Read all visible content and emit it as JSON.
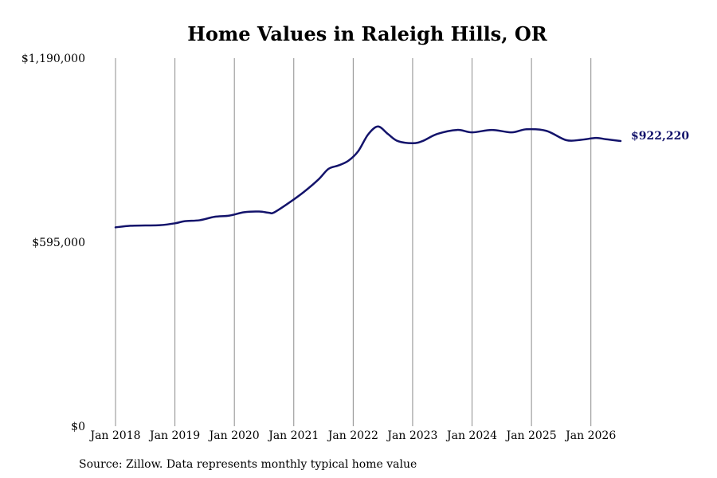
{
  "chart_data": {
    "type": "line",
    "title": "Home Values in Raleigh Hills, OR",
    "xlabel": "",
    "ylabel": "",
    "ylim": [
      0,
      1190000
    ],
    "y_ticks": [
      {
        "value": 0,
        "label": "$0"
      },
      {
        "value": 595000,
        "label": "$595,000"
      },
      {
        "value": 1190000,
        "label": "$1,190,000"
      }
    ],
    "x_range": [
      "2018-01",
      "2026-07"
    ],
    "x_ticks": [
      {
        "date": "2018-01",
        "label": "Jan 2018"
      },
      {
        "date": "2019-01",
        "label": "Jan 2019"
      },
      {
        "date": "2020-01",
        "label": "Jan 2020"
      },
      {
        "date": "2021-01",
        "label": "Jan 2021"
      },
      {
        "date": "2022-01",
        "label": "Jan 2022"
      },
      {
        "date": "2023-01",
        "label": "Jan 2023"
      },
      {
        "date": "2024-01",
        "label": "Jan 2024"
      },
      {
        "date": "2025-01",
        "label": "Jan 2025"
      },
      {
        "date": "2026-01",
        "label": "Jan 2026"
      }
    ],
    "grid": {
      "vertical": true,
      "horizontal": false
    },
    "series": [
      {
        "name": "",
        "color": "#13136b",
        "points": [
          {
            "x": "2018-01",
            "y": 643000
          },
          {
            "x": "2018-04",
            "y": 648000
          },
          {
            "x": "2018-07",
            "y": 649000
          },
          {
            "x": "2018-10",
            "y": 650000
          },
          {
            "x": "2019-01",
            "y": 656000
          },
          {
            "x": "2019-03",
            "y": 663000
          },
          {
            "x": "2019-06",
            "y": 666000
          },
          {
            "x": "2019-09",
            "y": 677000
          },
          {
            "x": "2019-12",
            "y": 681000
          },
          {
            "x": "2020-03",
            "y": 692000
          },
          {
            "x": "2020-06",
            "y": 694000
          },
          {
            "x": "2020-08",
            "y": 690000
          },
          {
            "x": "2020-09",
            "y": 691000
          },
          {
            "x": "2020-12",
            "y": 722000
          },
          {
            "x": "2021-03",
            "y": 757000
          },
          {
            "x": "2021-06",
            "y": 798000
          },
          {
            "x": "2021-08",
            "y": 832000
          },
          {
            "x": "2021-10",
            "y": 843000
          },
          {
            "x": "2021-12",
            "y": 858000
          },
          {
            "x": "2022-02",
            "y": 889000
          },
          {
            "x": "2022-04",
            "y": 943000
          },
          {
            "x": "2022-06",
            "y": 969000
          },
          {
            "x": "2022-08",
            "y": 945000
          },
          {
            "x": "2022-10",
            "y": 922000
          },
          {
            "x": "2023-01",
            "y": 915000
          },
          {
            "x": "2023-03",
            "y": 922000
          },
          {
            "x": "2023-06",
            "y": 945000
          },
          {
            "x": "2023-10",
            "y": 958000
          },
          {
            "x": "2024-01",
            "y": 950000
          },
          {
            "x": "2024-05",
            "y": 958000
          },
          {
            "x": "2024-09",
            "y": 950000
          },
          {
            "x": "2024-12",
            "y": 960000
          },
          {
            "x": "2025-04",
            "y": 955000
          },
          {
            "x": "2025-08",
            "y": 925000
          },
          {
            "x": "2025-11",
            "y": 926000
          },
          {
            "x": "2026-02",
            "y": 932000
          },
          {
            "x": "2026-04",
            "y": 928000
          },
          {
            "x": "2026-07",
            "y": 922220
          }
        ]
      }
    ],
    "end_label": "$922,220",
    "source": "Source: Zillow. Data represents monthly typical home value"
  }
}
